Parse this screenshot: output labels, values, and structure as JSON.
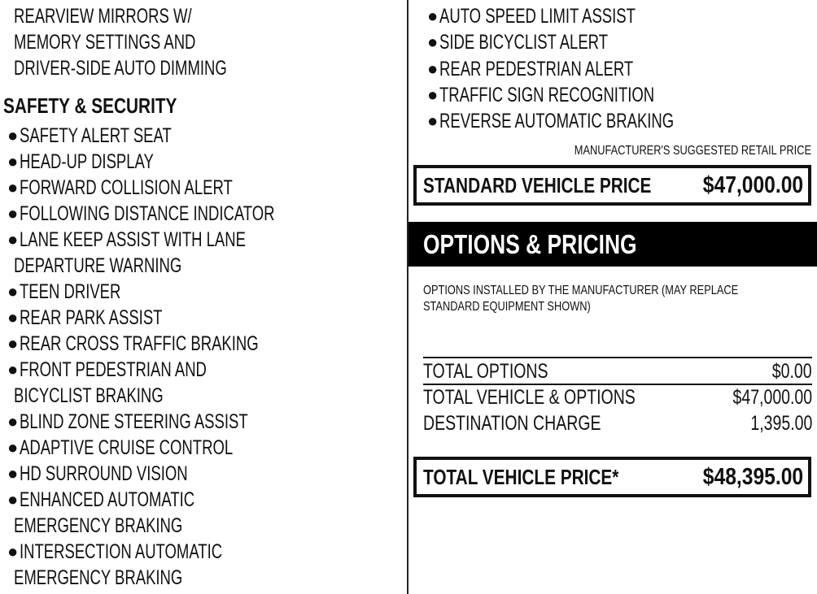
{
  "left_column": {
    "continued_lines": [
      "REARVIEW MIRRORS W/",
      "MEMORY SETTINGS AND",
      "DRIVER-SIDE AUTO DIMMING"
    ],
    "section_heading": "SAFETY & SECURITY",
    "items": [
      {
        "text": "SAFETY ALERT SEAT",
        "bullet": true
      },
      {
        "text": "HEAD-UP DISPLAY",
        "bullet": true
      },
      {
        "text": "FORWARD COLLISION ALERT",
        "bullet": true
      },
      {
        "text": "FOLLOWING DISTANCE INDICATOR",
        "bullet": true
      },
      {
        "text": "LANE KEEP ASSIST WITH LANE",
        "bullet": true
      },
      {
        "text": "DEPARTURE WARNING",
        "bullet": false
      },
      {
        "text": "TEEN DRIVER",
        "bullet": true
      },
      {
        "text": "REAR PARK ASSIST",
        "bullet": true
      },
      {
        "text": "REAR CROSS TRAFFIC BRAKING",
        "bullet": true
      },
      {
        "text": "FRONT PEDESTRIAN AND",
        "bullet": true
      },
      {
        "text": "BICYCLIST BRAKING",
        "bullet": false
      },
      {
        "text": "BLIND ZONE STEERING ASSIST",
        "bullet": true
      },
      {
        "text": "ADAPTIVE CRUISE CONTROL",
        "bullet": true
      },
      {
        "text": "HD SURROUND VISION",
        "bullet": true
      },
      {
        "text": "ENHANCED AUTOMATIC",
        "bullet": true
      },
      {
        "text": "EMERGENCY BRAKING",
        "bullet": false
      },
      {
        "text": "INTERSECTION AUTOMATIC",
        "bullet": true
      },
      {
        "text": "EMERGENCY BRAKING",
        "bullet": false
      }
    ]
  },
  "right_column": {
    "items": [
      "AUTO SPEED LIMIT ASSIST",
      "SIDE BICYCLIST ALERT",
      "REAR PEDESTRIAN ALERT",
      "TRAFFIC SIGN RECOGNITION",
      "REVERSE AUTOMATIC BRAKING"
    ],
    "msrp_label": "MANUFACTURER'S SUGGESTED RETAIL PRICE",
    "standard_price": {
      "label": "STANDARD VEHICLE PRICE",
      "value": "$47,000.00"
    },
    "options_heading": "OPTIONS & PRICING",
    "options_note": [
      "OPTIONS INSTALLED BY THE MANUFACTURER (MAY REPLACE",
      "STANDARD EQUIPMENT SHOWN)"
    ],
    "summary": [
      {
        "label": "TOTAL OPTIONS",
        "value": "$0.00"
      },
      {
        "label": "TOTAL VEHICLE & OPTIONS",
        "value": "$47,000.00"
      },
      {
        "label": "DESTINATION CHARGE",
        "value": "1,395.00"
      }
    ],
    "total_price": {
      "label": "TOTAL VEHICLE PRICE*",
      "value": "$48,395.00"
    }
  }
}
